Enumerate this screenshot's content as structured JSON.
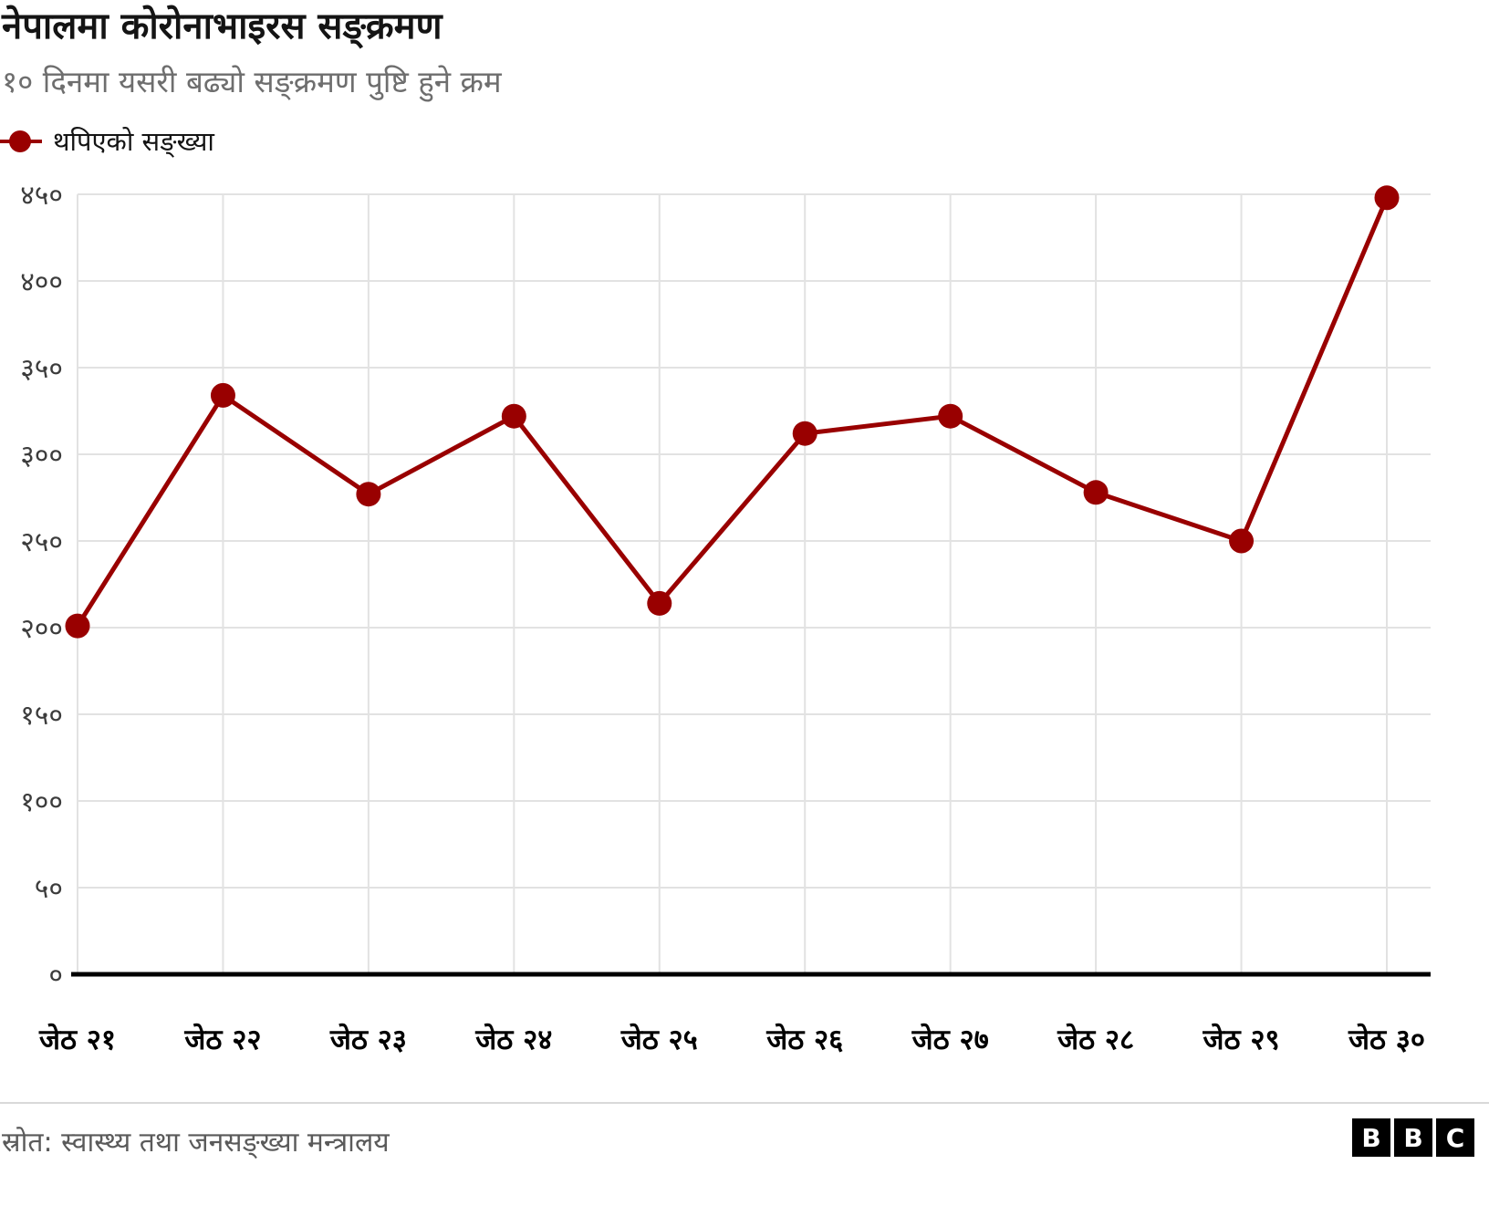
{
  "header": {
    "title": "नेपालमा कोरोनाभाइरस सङ्क्रमण",
    "subtitle": "१० दिनमा यसरी बढ्यो सङ्क्रमण पुष्टि हुने क्रम"
  },
  "legend": {
    "label": "थपिएको सङ्ख्या",
    "marker": "filled-circle-on-line"
  },
  "footer": {
    "source": "स्रोत: स्वास्थ्य तथा जनसङ्ख्या मन्त्रालय",
    "logo_blocks": [
      "B",
      "B",
      "C"
    ]
  },
  "colors": {
    "series": "#990000",
    "grid": "#e2e2e2",
    "axis": "#000000",
    "tick_text": "#3c3c3c",
    "x_label_text": "#000000",
    "subtitle_text": "#6e6e6e",
    "source_text": "#5a5a5a"
  },
  "chart_data": {
    "type": "line",
    "title": "नेपालमा कोरोनाभाइरस सङ्क्रमण",
    "subtitle": "१० दिनमा यसरी बढ्यो सङ्क्रमण पुष्टि हुने क्रम",
    "xlabel": "",
    "ylabel": "",
    "grid": true,
    "legend_position": "top-left",
    "categories": [
      "जेठ २१",
      "जेठ २२",
      "जेठ २३",
      "जेठ २४",
      "जेठ २५",
      "जेठ २६",
      "जेठ २७",
      "जेठ २८",
      "जेठ २९",
      "जेठ ३०"
    ],
    "series": [
      {
        "name": "थपिएको सङ्ख्या",
        "color": "#990000",
        "values": [
          201,
          334,
          277,
          322,
          214,
          312,
          322,
          278,
          250,
          448
        ]
      }
    ],
    "ylim": [
      0,
      450
    ],
    "ytick_values": [
      0,
      50,
      100,
      150,
      200,
      250,
      300,
      350,
      400,
      450
    ],
    "ytick_labels": [
      "०",
      "५०",
      "१००",
      "१५०",
      "२००",
      "२५०",
      "३००",
      "३५०",
      "४००",
      "४५०"
    ]
  }
}
